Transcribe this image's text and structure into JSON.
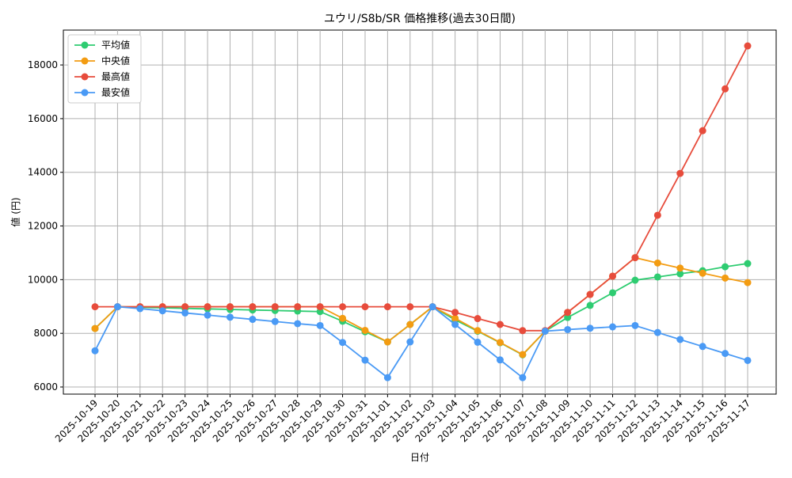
{
  "chart_data": {
    "type": "line",
    "title": "ユウリ/S8b/SR 価格推移(過去30日間)",
    "x_label": "日付",
    "y_label": "値 (円)",
    "categories": [
      "2025-10-19",
      "2025-10-20",
      "2025-10-21",
      "2025-10-22",
      "2025-10-23",
      "2025-10-24",
      "2025-10-25",
      "2025-10-26",
      "2025-10-27",
      "2025-10-28",
      "2025-10-29",
      "2025-10-30",
      "2025-10-31",
      "2025-11-01",
      "2025-11-02",
      "2025-11-03",
      "2025-11-04",
      "2025-11-05",
      "2025-11-06",
      "2025-11-07",
      "2025-11-08",
      "2025-11-09",
      "2025-11-10",
      "2025-11-11",
      "2025-11-12",
      "2025-11-13",
      "2025-11-14",
      "2025-11-15",
      "2025-11-16",
      "2025-11-17"
    ],
    "series": [
      {
        "name": "平均値",
        "color": "#2ecc71",
        "values": [
          8180,
          8990,
          8970,
          8950,
          8930,
          8910,
          8890,
          8870,
          8850,
          8830,
          8810,
          8450,
          8060,
          7680,
          8330,
          8990,
          8500,
          8080,
          7650,
          7200,
          8080,
          8590,
          9040,
          9510,
          9980,
          10100,
          10220,
          10330,
          10480,
          10600
        ]
      },
      {
        "name": "中央値",
        "color": "#f39c12",
        "values": [
          8180,
          8990,
          8990,
          8990,
          8990,
          8990,
          8990,
          8990,
          8990,
          8990,
          8990,
          8560,
          8110,
          7680,
          8330,
          8990,
          8560,
          8100,
          7660,
          7210,
          8080,
          8780,
          9450,
          10130,
          10820,
          10620,
          10430,
          10240,
          10060,
          9890
        ]
      },
      {
        "name": "最高値",
        "color": "#e74c3c",
        "values": [
          8990,
          8990,
          8990,
          8990,
          8990,
          8990,
          8990,
          8990,
          8990,
          8990,
          8990,
          8990,
          8990,
          8990,
          8990,
          8990,
          8780,
          8550,
          8330,
          8100,
          8100,
          8780,
          9450,
          10130,
          10820,
          12400,
          13960,
          15550,
          17110,
          18710
        ]
      },
      {
        "name": "最安値",
        "color": "#4a9af5",
        "values": [
          7350,
          8990,
          8920,
          8840,
          8760,
          8680,
          8600,
          8520,
          8440,
          8360,
          8290,
          7660,
          7000,
          6350,
          7680,
          8990,
          8330,
          7670,
          7010,
          6350,
          8080,
          8140,
          8190,
          8240,
          8290,
          8030,
          7770,
          7510,
          7250,
          6990
        ]
      }
    ],
    "ylim": [
      5735,
      19300
    ],
    "yticks": [
      6000,
      8000,
      10000,
      12000,
      14000,
      16000,
      18000
    ],
    "grid": true,
    "legend": "upper-left"
  }
}
